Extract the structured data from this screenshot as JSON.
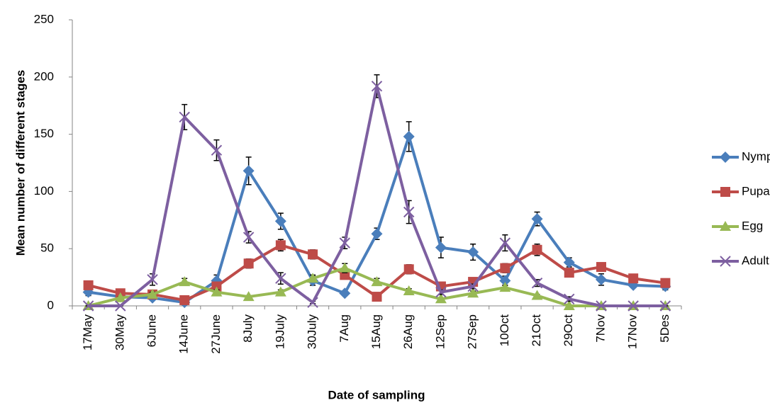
{
  "chart_data": {
    "type": "line",
    "y_label": "Mean number of different stages",
    "x_label": "Date of sampling",
    "categories": [
      "17May",
      "30May",
      "6June",
      "14June",
      "27June",
      "8July",
      "19July",
      "30July",
      "7Aug",
      "15Aug",
      "26Aug",
      "12Sep",
      "27Sep",
      "10Oct",
      "21Oct",
      "29Oct",
      "7Nov",
      "17Nov",
      "5Des"
    ],
    "series": [
      {
        "name": "Nymph",
        "color": "#4a7ebb",
        "marker": "diamond",
        "values": [
          12,
          8,
          7,
          3,
          22,
          118,
          74,
          22,
          11,
          63,
          148,
          51,
          47,
          22,
          76,
          38,
          23,
          18,
          17
        ],
        "errors": [
          3,
          2,
          2,
          2,
          5,
          12,
          7,
          4,
          2,
          5,
          13,
          9,
          7,
          4,
          6,
          4,
          5,
          2,
          3
        ]
      },
      {
        "name": "Pupae",
        "color": "#be4b48",
        "marker": "square",
        "values": [
          18,
          11,
          10,
          5,
          17,
          37,
          53,
          45,
          27,
          8,
          32,
          17,
          21,
          33,
          49,
          29,
          34,
          24,
          20
        ],
        "errors": [
          2,
          2,
          2,
          1,
          3,
          4,
          5,
          4,
          3,
          2,
          4,
          2,
          3,
          4,
          5,
          3,
          3,
          3,
          2
        ]
      },
      {
        "name": "Egg",
        "color": "#98b954",
        "marker": "triangle",
        "values": [
          0,
          7,
          10,
          21,
          12,
          8,
          12,
          24,
          33,
          21,
          13,
          6,
          11,
          16,
          9,
          0,
          0,
          0,
          0
        ],
        "errors": [
          0,
          1,
          2,
          3,
          2,
          1,
          2,
          3,
          4,
          3,
          2,
          1,
          2,
          2,
          1,
          0,
          0,
          0,
          0
        ]
      },
      {
        "name": "Adult",
        "color": "#7d5fa0",
        "marker": "x",
        "values": [
          0,
          0,
          23,
          165,
          136,
          60,
          24,
          3,
          55,
          192,
          82,
          12,
          17,
          55,
          20,
          6,
          0,
          0,
          0
        ],
        "errors": [
          0,
          0,
          5,
          11,
          9,
          5,
          5,
          1,
          5,
          10,
          10,
          2,
          2,
          7,
          3,
          2,
          0,
          0,
          0
        ]
      }
    ],
    "ylim": [
      0,
      250
    ],
    "yticks": [
      0,
      50,
      100,
      150,
      200,
      250
    ],
    "grid": false,
    "legend": "right"
  }
}
